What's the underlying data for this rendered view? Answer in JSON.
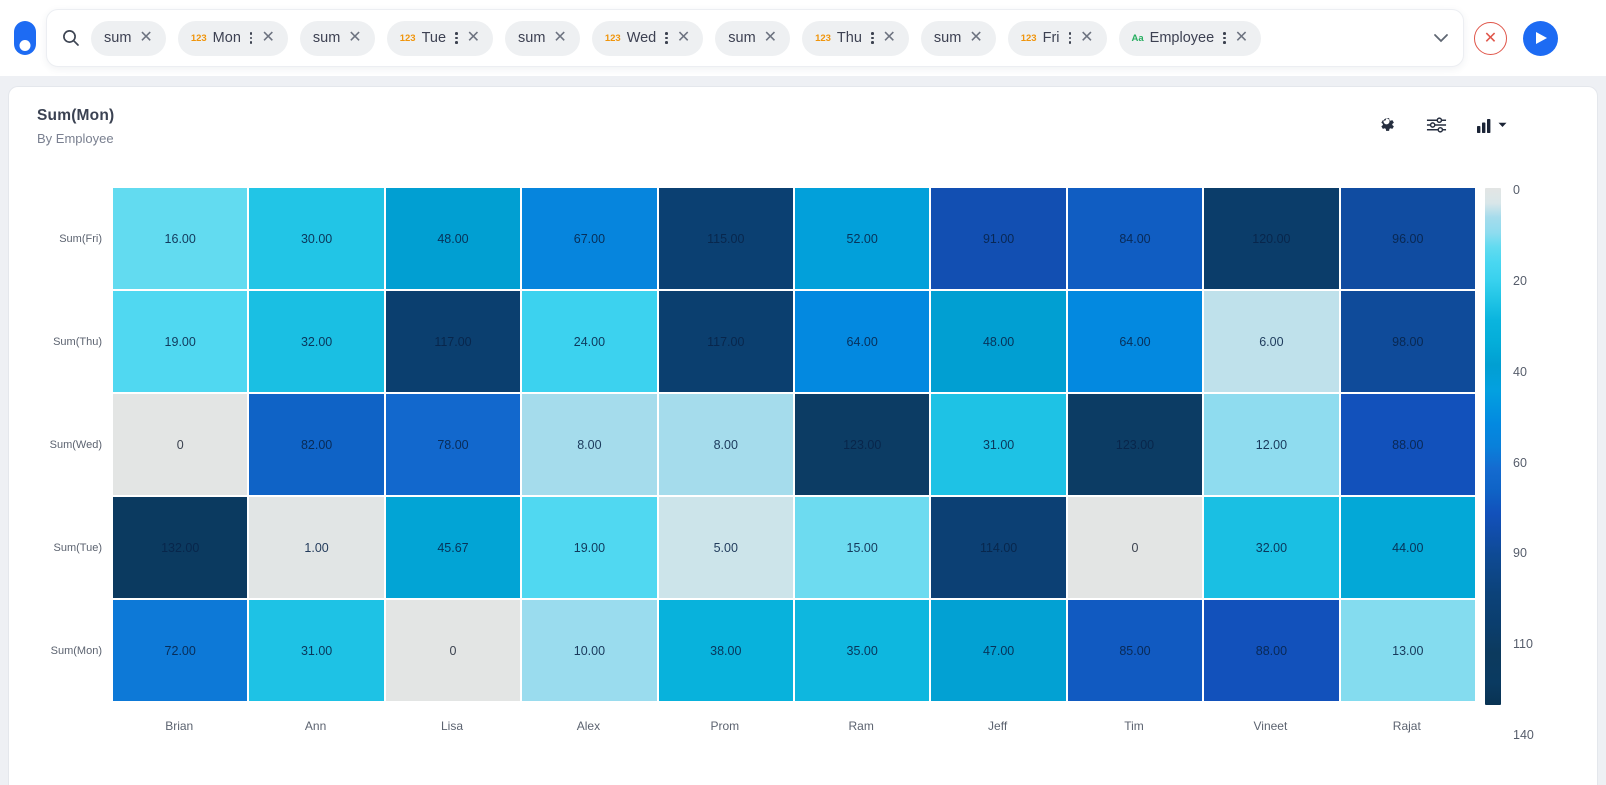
{
  "app": {
    "accent_color": "#1d6bf3"
  },
  "search_bar": {
    "tokens": [
      {
        "label": "sum",
        "prefix": "",
        "menu": false
      },
      {
        "label": "Mon",
        "prefix": "123",
        "menu": true
      },
      {
        "label": "sum",
        "prefix": "",
        "menu": false
      },
      {
        "label": "Tue",
        "prefix": "123",
        "menu": true
      },
      {
        "label": "sum",
        "prefix": "",
        "menu": false
      },
      {
        "label": "Wed",
        "prefix": "123",
        "menu": true
      },
      {
        "label": "sum",
        "prefix": "",
        "menu": false
      },
      {
        "label": "Thu",
        "prefix": "123",
        "menu": true
      },
      {
        "label": "sum",
        "prefix": "",
        "menu": false
      },
      {
        "label": "Fri",
        "prefix": "123",
        "menu": true
      },
      {
        "label": "Employee",
        "prefix": "Aa",
        "menu": true
      }
    ],
    "prefix_colors": {
      "123": "#f0950c",
      "Aa": "#27ae60"
    },
    "clear_color": "#e0564a",
    "run_color": "#1d6bf3"
  },
  "chart": {
    "title": "Sum(Mon)",
    "subtitle": "By Employee",
    "toolbar_icons": [
      "settings-gear",
      "configure-sliders",
      "chart-type-selector"
    ]
  },
  "chart_data": {
    "type": "heatmap",
    "title": "Sum(Mon)",
    "subtitle": "By Employee",
    "x_categories": [
      "Brian",
      "Ann",
      "Lisa",
      "Alex",
      "Prom",
      "Ram",
      "Jeff",
      "Tim",
      "Vineet",
      "Rajat"
    ],
    "y_categories": [
      "Sum(Fri)",
      "Sum(Thu)",
      "Sum(Wed)",
      "Sum(Tue)",
      "Sum(Mon)"
    ],
    "series": [
      {
        "name": "Sum(Fri)",
        "values": [
          16,
          30,
          48,
          67,
          115,
          52,
          91,
          84,
          120,
          96
        ]
      },
      {
        "name": "Sum(Thu)",
        "values": [
          19,
          32,
          117,
          24,
          117,
          64,
          48,
          64,
          6,
          98
        ]
      },
      {
        "name": "Sum(Wed)",
        "values": [
          0,
          82,
          78,
          8,
          8,
          123,
          31,
          123,
          12,
          88
        ]
      },
      {
        "name": "Sum(Tue)",
        "values": [
          132,
          1,
          45.67,
          19,
          5,
          15,
          114,
          0,
          32,
          44
        ]
      },
      {
        "name": "Sum(Mon)",
        "values": [
          72,
          31,
          0,
          10,
          38,
          35,
          47,
          85,
          88,
          13
        ]
      }
    ],
    "cell_labels": [
      [
        "16.00",
        "30.00",
        "48.00",
        "67.00",
        "115.00",
        "52.00",
        "91.00",
        "84.00",
        "120.00",
        "96.00"
      ],
      [
        "19.00",
        "32.00",
        "117.00",
        "24.00",
        "117.00",
        "64.00",
        "48.00",
        "64.00",
        "6.00",
        "98.00"
      ],
      [
        "0",
        "82.00",
        "78.00",
        "8.00",
        "8.00",
        "123.00",
        "31.00",
        "123.00",
        "12.00",
        "88.00"
      ],
      [
        "132.00",
        "1.00",
        "45.67",
        "19.00",
        "5.00",
        "15.00",
        "114.00",
        "0",
        "32.00",
        "44.00"
      ],
      [
        "72.00",
        "31.00",
        "0",
        "10.00",
        "38.00",
        "35.00",
        "47.00",
        "85.00",
        "88.00",
        "13.00"
      ]
    ],
    "legend_ticks": [
      "0",
      "20",
      "40",
      "60",
      "90",
      "110",
      "140"
    ],
    "legend_position": "right",
    "domain": [
      0,
      140
    ],
    "grid": false,
    "color_stops": [
      [
        0,
        "#e3e5e4"
      ],
      [
        4,
        "#d9e6e9"
      ],
      [
        8,
        "#a5dcec"
      ],
      [
        12,
        "#8fdcef"
      ],
      [
        16,
        "#62dbf0"
      ],
      [
        20,
        "#4ad7f1"
      ],
      [
        25,
        "#38d1ee"
      ],
      [
        30,
        "#22c5e6"
      ],
      [
        36,
        "#0ab4de"
      ],
      [
        42,
        "#04add9"
      ],
      [
        48,
        "#019fd2"
      ],
      [
        55,
        "#03a0e0"
      ],
      [
        64,
        "#0389e0"
      ],
      [
        70,
        "#0980da"
      ],
      [
        76,
        "#146bd0"
      ],
      [
        82,
        "#0f63c6"
      ],
      [
        88,
        "#1251bb"
      ],
      [
        94,
        "#114da8"
      ],
      [
        100,
        "#0e4a93"
      ],
      [
        110,
        "#0c4279"
      ],
      [
        118,
        "#0b3e6e"
      ],
      [
        126,
        "#0c3a5e"
      ],
      [
        134,
        "#0a3a61"
      ],
      [
        140,
        "#093353"
      ]
    ]
  }
}
